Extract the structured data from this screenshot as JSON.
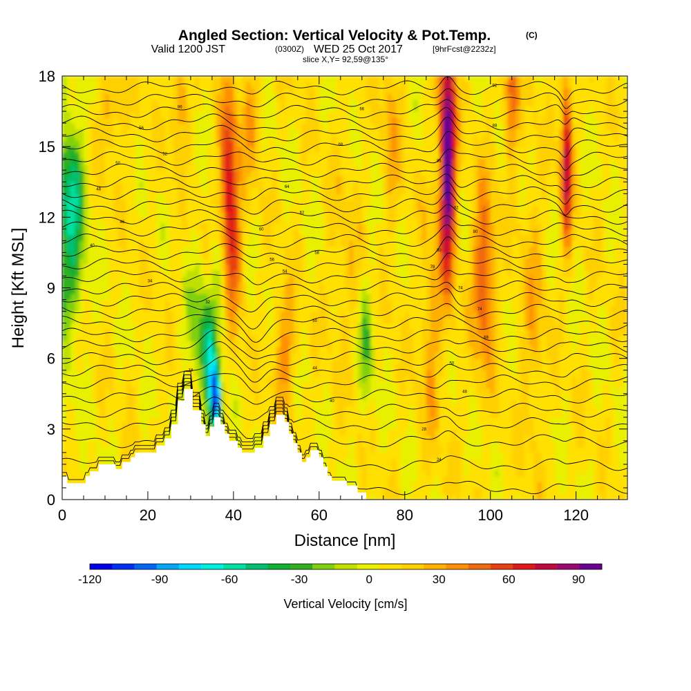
{
  "chart_data": {
    "type": "heatmap",
    "title": {
      "main": "Angled Section: Vertical Velocity & Pot.Temp.",
      "copyright": "(C)",
      "valid_prefix": "Valid 1200 JST",
      "valid_utc": "(0300Z)",
      "valid_date": "WED 25 Oct 2017",
      "forecast": "[9hrFcst@2232z]",
      "slice": "slice X,Y= 92,59@135°"
    },
    "xlabel": "Distance [nm]",
    "ylabel": "Height [Kft MSL]",
    "xlim": [
      0,
      132
    ],
    "ylim": [
      0,
      18
    ],
    "xticks": [
      0,
      20,
      40,
      60,
      80,
      100,
      120
    ],
    "yticks": [
      0,
      3,
      6,
      9,
      12,
      15,
      18
    ],
    "colorbar": {
      "label": "Vertical Velocity [cm/s]",
      "ticks": [
        -120,
        -90,
        -60,
        -30,
        0,
        30,
        60,
        90
      ],
      "range": [
        -120,
        100
      ],
      "colors": [
        "#0000e6",
        "#0030f0",
        "#0066f5",
        "#00a8f8",
        "#00d8ff",
        "#00f0e0",
        "#00e0a0",
        "#00c070",
        "#10b030",
        "#30b020",
        "#80d010",
        "#c0e000",
        "#e8f000",
        "#ffe000",
        "#ffd000",
        "#ffb000",
        "#ff9000",
        "#f06a10",
        "#e84010",
        "#e01818",
        "#c00840",
        "#9a0870",
        "#6a0090"
      ]
    },
    "terrain_kft": [
      [
        0,
        1.0
      ],
      [
        1.2,
        1.0
      ],
      [
        1.2,
        0.7
      ],
      [
        5.5,
        0.7
      ],
      [
        5.5,
        1.0
      ],
      [
        6.5,
        1.0
      ],
      [
        6.5,
        1.2
      ],
      [
        8.5,
        1.2
      ],
      [
        8.5,
        1.5
      ],
      [
        12.5,
        1.5
      ],
      [
        12.5,
        1.3
      ],
      [
        14,
        1.3
      ],
      [
        14,
        1.6
      ],
      [
        16,
        1.6
      ],
      [
        16,
        1.8
      ],
      [
        17,
        1.8
      ],
      [
        17,
        2.0
      ],
      [
        22,
        2.0
      ],
      [
        22,
        2.3
      ],
      [
        24,
        2.3
      ],
      [
        24,
        2.6
      ],
      [
        25.5,
        2.6
      ],
      [
        25.5,
        3.2
      ],
      [
        27,
        3.2
      ],
      [
        27,
        4.2
      ],
      [
        28.5,
        4.2
      ],
      [
        28.5,
        4.7
      ],
      [
        30.5,
        4.7
      ],
      [
        30.5,
        3.8
      ],
      [
        32.5,
        3.8
      ],
      [
        32.5,
        3.2
      ],
      [
        33.5,
        3.2
      ],
      [
        33.5,
        2.7
      ],
      [
        34.5,
        2.7
      ],
      [
        34.5,
        3.1
      ],
      [
        35.5,
        3.1
      ],
      [
        35.5,
        3.5
      ],
      [
        37,
        3.5
      ],
      [
        37,
        3.2
      ],
      [
        38,
        3.2
      ],
      [
        38,
        2.8
      ],
      [
        39,
        2.8
      ],
      [
        39,
        2.5
      ],
      [
        41,
        2.5
      ],
      [
        41,
        2.2
      ],
      [
        42,
        2.2
      ],
      [
        42,
        2.0
      ],
      [
        45,
        2.0
      ],
      [
        45,
        2.2
      ],
      [
        47,
        2.2
      ],
      [
        47,
        2.7
      ],
      [
        48.5,
        2.7
      ],
      [
        48.5,
        3.2
      ],
      [
        50,
        3.2
      ],
      [
        50,
        3.6
      ],
      [
        52,
        3.6
      ],
      [
        52,
        3.3
      ],
      [
        53,
        3.3
      ],
      [
        53,
        2.8
      ],
      [
        54,
        2.8
      ],
      [
        54,
        2.4
      ],
      [
        55,
        2.4
      ],
      [
        55,
        2.0
      ],
      [
        56,
        2.0
      ],
      [
        56,
        1.6
      ],
      [
        57,
        1.6
      ],
      [
        57,
        1.8
      ],
      [
        58,
        1.8
      ],
      [
        58,
        2.1
      ],
      [
        60,
        2.1
      ],
      [
        60,
        1.8
      ],
      [
        61,
        1.8
      ],
      [
        61,
        1.4
      ],
      [
        62,
        1.4
      ],
      [
        62,
        1.0
      ],
      [
        63,
        1.0
      ],
      [
        63,
        0.8
      ],
      [
        66.5,
        0.8
      ],
      [
        66.5,
        0.6
      ],
      [
        69,
        0.6
      ],
      [
        69,
        0.3
      ],
      [
        71,
        0.3
      ],
      [
        71,
        0.0
      ]
    ],
    "vv_anomalies": [
      {
        "x": 38.8,
        "y": 13.2,
        "sx": 1.4,
        "sy": 2.8,
        "v": 65
      },
      {
        "x": 40.5,
        "y": 10.5,
        "sx": 1.4,
        "sy": 2.0,
        "v": 28
      },
      {
        "x": 52,
        "y": 6.5,
        "sx": 1.8,
        "sy": 1.8,
        "v": 30
      },
      {
        "x": 27.5,
        "y": 17,
        "sx": 1.2,
        "sy": 1.5,
        "v": 30
      },
      {
        "x": 44,
        "y": 16.5,
        "sx": 1.8,
        "sy": 2.0,
        "v": 22
      },
      {
        "x": 12,
        "y": 16.8,
        "sx": 2.2,
        "sy": 1.4,
        "v": 22
      },
      {
        "x": 90,
        "y": 14.5,
        "sx": 1.3,
        "sy": 3.5,
        "v": 105
      },
      {
        "x": 98.5,
        "y": 9.5,
        "sx": 1.8,
        "sy": 2.6,
        "v": 50
      },
      {
        "x": 104.8,
        "y": 17,
        "sx": 1.2,
        "sy": 1.8,
        "v": 42
      },
      {
        "x": 117.8,
        "y": 14.5,
        "sx": 0.9,
        "sy": 2.6,
        "v": 72
      },
      {
        "x": 86,
        "y": 7,
        "sx": 1.8,
        "sy": 3.5,
        "v": 22
      },
      {
        "x": 77,
        "y": 15.5,
        "sx": 1.6,
        "sy": 3.0,
        "v": 18
      },
      {
        "x": 110,
        "y": 8,
        "sx": 2.0,
        "sy": 4.0,
        "v": 18
      },
      {
        "x": 66,
        "y": 10,
        "sx": 2.5,
        "sy": 3.0,
        "v": 12
      },
      {
        "x": 2,
        "y": 11,
        "sx": 2.2,
        "sy": 2.8,
        "v": -38
      },
      {
        "x": 2.5,
        "y": 13.5,
        "sx": 2.0,
        "sy": 1.6,
        "v": -22
      },
      {
        "x": 35.8,
        "y": 4.2,
        "sx": 0.9,
        "sy": 1.0,
        "v": -115
      },
      {
        "x": 34.3,
        "y": 6.0,
        "sx": 1.2,
        "sy": 1.6,
        "v": -55
      },
      {
        "x": 31.5,
        "y": 7.5,
        "sx": 1.6,
        "sy": 1.8,
        "v": -28
      },
      {
        "x": 36.8,
        "y": 9.5,
        "sx": 1.5,
        "sy": 1.6,
        "v": -22
      },
      {
        "x": 71,
        "y": 6.5,
        "sx": 1.1,
        "sy": 2.0,
        "v": -30
      },
      {
        "x": 29,
        "y": 3.6,
        "sx": 1.0,
        "sy": 1.0,
        "v": -30
      }
    ],
    "contour_base_kft": [
      0.5,
      1.5,
      2.5,
      3.2,
      3.8,
      4.4,
      5.0,
      5.5,
      6.0,
      6.5,
      7.0,
      7.5,
      8.0,
      8.5,
      9.0,
      9.5,
      10.0,
      10.5,
      11.0,
      11.5,
      12.0,
      12.5,
      13.0,
      13.5,
      14.0,
      14.5,
      15.0,
      15.5,
      16.0,
      16.5,
      17.0,
      17.5
    ],
    "contour_labels": [
      {
        "x": 27.5,
        "y": 16.7,
        "text": "86"
      },
      {
        "x": 18.5,
        "y": 15.8,
        "text": "56"
      },
      {
        "x": 24,
        "y": 14.7,
        "text": "52"
      },
      {
        "x": 13,
        "y": 14.3,
        "text": "50"
      },
      {
        "x": 8.5,
        "y": 13.2,
        "text": "48"
      },
      {
        "x": 14,
        "y": 11.8,
        "text": "46"
      },
      {
        "x": 7,
        "y": 10.8,
        "text": "40"
      },
      {
        "x": 20.5,
        "y": 9.3,
        "text": "34"
      },
      {
        "x": 34,
        "y": 8.4,
        "text": "32"
      },
      {
        "x": 30,
        "y": 5.5,
        "text": "18"
      },
      {
        "x": 70,
        "y": 16.6,
        "text": "66"
      },
      {
        "x": 65,
        "y": 15.1,
        "text": "68"
      },
      {
        "x": 52.5,
        "y": 13.3,
        "text": "64"
      },
      {
        "x": 56,
        "y": 12.2,
        "text": "62"
      },
      {
        "x": 46.5,
        "y": 11.5,
        "text": "60"
      },
      {
        "x": 59.5,
        "y": 10.5,
        "text": "58"
      },
      {
        "x": 49,
        "y": 10.2,
        "text": "56"
      },
      {
        "x": 52,
        "y": 9.7,
        "text": "54"
      },
      {
        "x": 59,
        "y": 7.6,
        "text": "50"
      },
      {
        "x": 59,
        "y": 5.6,
        "text": "44"
      },
      {
        "x": 63,
        "y": 4.2,
        "text": "40"
      },
      {
        "x": 84.5,
        "y": 3.0,
        "text": "28"
      },
      {
        "x": 88,
        "y": 10.6,
        "text": "80"
      },
      {
        "x": 86.5,
        "y": 9.9,
        "text": "78"
      },
      {
        "x": 93,
        "y": 9.0,
        "text": "74"
      },
      {
        "x": 97.5,
        "y": 8.1,
        "text": "74"
      },
      {
        "x": 99,
        "y": 6.9,
        "text": "68"
      },
      {
        "x": 91,
        "y": 5.8,
        "text": "50"
      },
      {
        "x": 94,
        "y": 4.6,
        "text": "48"
      },
      {
        "x": 88,
        "y": 14.4,
        "text": "86"
      },
      {
        "x": 92,
        "y": 12.4,
        "text": "82"
      },
      {
        "x": 96.5,
        "y": 11.4,
        "text": "80"
      },
      {
        "x": 101,
        "y": 17.6,
        "text": "92"
      },
      {
        "x": 101,
        "y": 15.9,
        "text": "88"
      },
      {
        "x": 88,
        "y": 1.7,
        "text": "24"
      }
    ]
  }
}
